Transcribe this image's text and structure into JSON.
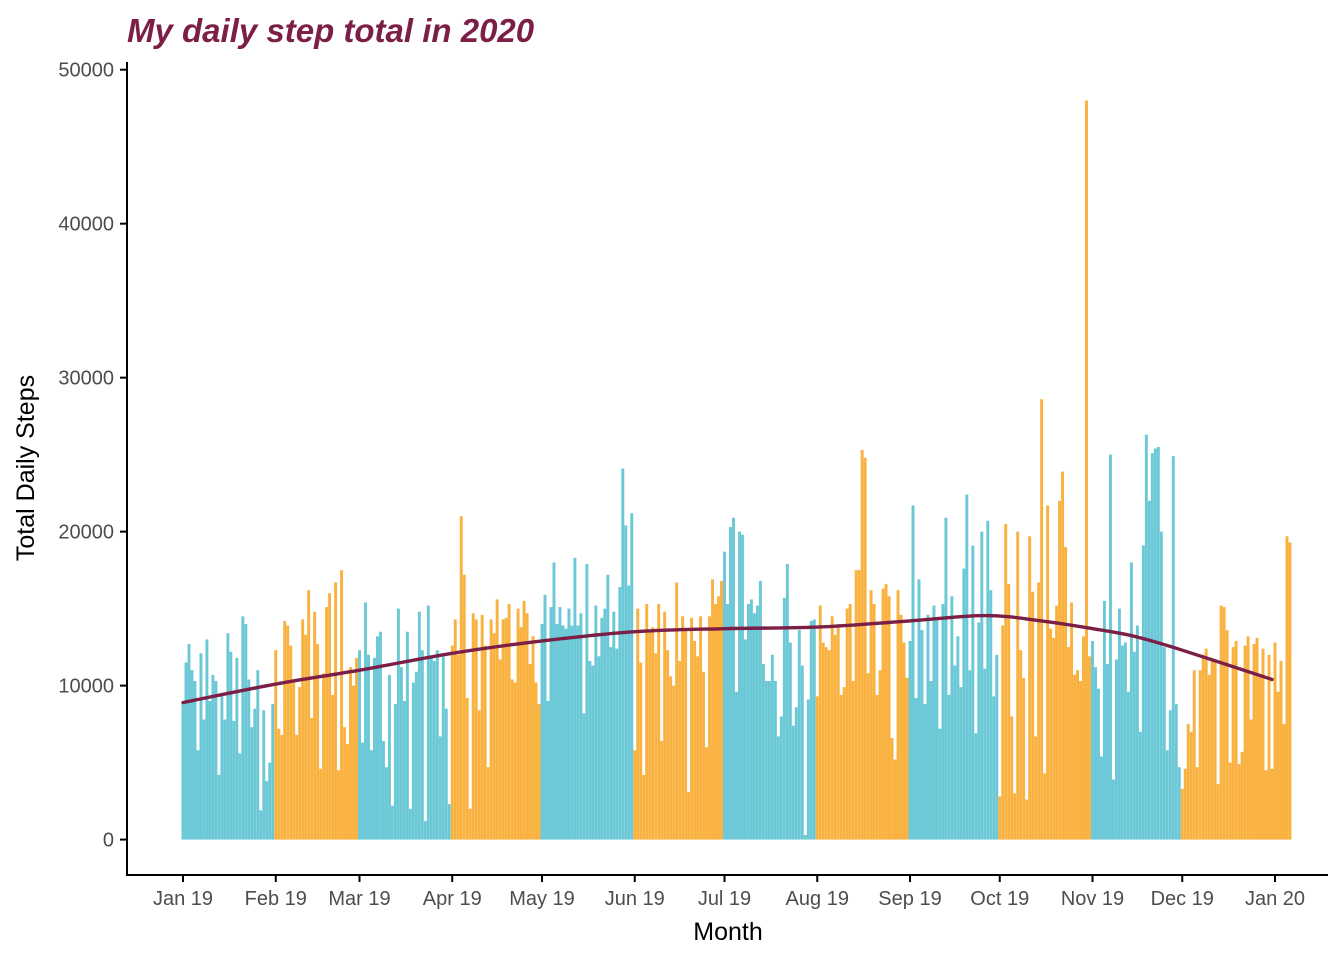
{
  "colors": {
    "title": "#7b1f47",
    "bar_a": "#6bc8d6",
    "bar_b": "#f9b140",
    "trend": "#7b1f47",
    "axis": "#000000",
    "tick_text": "#4d4d4d"
  },
  "chart_data": {
    "type": "bar",
    "title": "My daily step total in 2020",
    "xlabel": "Month",
    "ylabel": "Total Daily Steps",
    "ylim": [
      -2300,
      50500
    ],
    "yticks": [
      0,
      10000,
      20000,
      30000,
      40000,
      50000
    ],
    "xlim": [
      "2019-01-01",
      "2020-01-01"
    ],
    "xticks": [
      "Jan 19",
      "Feb 19",
      "Mar 19",
      "Apr 19",
      "May 19",
      "Jun 19",
      "Jul 19",
      "Aug 19",
      "Sep 19",
      "Oct 19",
      "Nov 19",
      "Dec 19",
      "Jan 20"
    ],
    "grid": false,
    "legend": "none",
    "bar_colors_by_month": [
      "bar_a",
      "bar_b",
      "bar_a",
      "bar_b",
      "bar_a",
      "bar_b",
      "bar_a",
      "bar_b",
      "bar_a",
      "bar_b",
      "bar_a",
      "bar_b"
    ],
    "months": [
      {
        "name": "Jan 19",
        "values": [
          8800,
          11500,
          12700,
          11000,
          10300,
          5800,
          12100,
          7800,
          13000,
          9000,
          10700,
          10300,
          4200,
          9500,
          7800,
          13400,
          12200,
          7700,
          11800,
          5600,
          14500,
          14000,
          10400,
          7300,
          8500,
          11000,
          1900,
          8400,
          3800,
          5000,
          8800
        ]
      },
      {
        "name": "Feb 19",
        "values": [
          12300,
          7200,
          6800,
          14200,
          13900,
          12600,
          10300,
          6800,
          9900,
          14300,
          13300,
          16200,
          7900,
          14800,
          12700,
          4600,
          10800,
          15100,
          16000,
          9400,
          16700,
          4500,
          17500,
          7300,
          6200,
          11200,
          10000,
          11800
        ]
      },
      {
        "name": "Mar 19",
        "values": [
          12300,
          6300,
          15400,
          12000,
          5800,
          11800,
          13200,
          13500,
          6400,
          4700,
          10700,
          2200,
          8800,
          15000,
          11200,
          9000,
          13500,
          2000,
          10200,
          10900,
          14800,
          12300,
          1200,
          15200,
          11800,
          11600,
          12300,
          6700,
          12000,
          8500,
          2300
        ]
      },
      {
        "name": "Apr 19",
        "values": [
          12600,
          14300,
          12000,
          21000,
          17200,
          9200,
          2000,
          14700,
          14300,
          8400,
          14600,
          12600,
          4700,
          14300,
          13400,
          15600,
          11700,
          14300,
          14400,
          15300,
          10400,
          10200,
          15000,
          13800,
          15500,
          14700,
          11400,
          13200,
          10200,
          8800
        ]
      },
      {
        "name": "May 19",
        "values": [
          14000,
          15900,
          9000,
          15100,
          18000,
          14000,
          15100,
          13900,
          13700,
          15000,
          13900,
          18300,
          13900,
          14700,
          8200,
          17900,
          11600,
          11300,
          15200,
          11900,
          14400,
          15000,
          17200,
          12500,
          14800,
          12400,
          16400,
          24100,
          20400,
          16500,
          21200
        ]
      },
      {
        "name": "Jun 19",
        "values": [
          5800,
          15000,
          11500,
          4200,
          15300,
          13500,
          13800,
          12100,
          15300,
          6400,
          14800,
          12300,
          10600,
          10000,
          16700,
          11600,
          14500,
          13700,
          3100,
          14400,
          12900,
          11900,
          14500,
          10900,
          6000,
          14500,
          16900,
          15300,
          15800,
          16800
        ]
      },
      {
        "name": "Jul 19",
        "values": [
          18700,
          15300,
          20300,
          20900,
          9600,
          20000,
          19800,
          13000,
          15300,
          15600,
          14700,
          15200,
          16800,
          11400,
          10300,
          10300,
          12000,
          10300,
          6700,
          8000,
          15700,
          17900,
          12800,
          7400,
          8600,
          13600,
          11300,
          300,
          9100,
          14200,
          14300
        ]
      },
      {
        "name": "Aug 19",
        "values": [
          9300,
          15200,
          12800,
          12500,
          12300,
          14500,
          13300,
          14000,
          9400,
          9900,
          15000,
          15300,
          10300,
          17500,
          17500,
          25300,
          24800,
          10800,
          16200,
          15300,
          9400,
          11000,
          16300,
          16600,
          15800,
          6600,
          5200,
          16200,
          14600,
          12800,
          10500
        ]
      },
      {
        "name": "Sep 19",
        "values": [
          12900,
          21700,
          9200,
          16900,
          13600,
          8800,
          14600,
          10300,
          15200,
          14400,
          7200,
          15300,
          20900,
          9400,
          15800,
          11300,
          13200,
          9900,
          17600,
          22400,
          11000,
          19100,
          6900,
          14100,
          20000,
          11100,
          20700,
          16200,
          9300,
          12000
        ]
      },
      {
        "name": "Oct 19",
        "values": [
          2800,
          13900,
          20500,
          16600,
          8000,
          3000,
          20000,
          12300,
          10500,
          2600,
          19700,
          16100,
          6700,
          16700,
          28600,
          4300,
          21700,
          13700,
          13100,
          15200,
          22000,
          23900,
          19000,
          12500,
          15400,
          10700,
          11000,
          10300,
          13200,
          48000,
          11900
        ]
      },
      {
        "name": "Nov 19",
        "values": [
          12900,
          11200,
          9800,
          5400,
          15500,
          11400,
          25000,
          3900,
          11700,
          15000,
          12600,
          12800,
          9600,
          18000,
          12200,
          13900,
          7000,
          19100,
          26300,
          22000,
          25100,
          25400,
          25500,
          20000,
          12500,
          5800,
          8400,
          24900,
          8800,
          4700
        ]
      },
      {
        "name": "Dec 19",
        "values": [
          3300,
          4600,
          7500,
          7000,
          11000,
          4700,
          11000,
          12000,
          12400,
          10700,
          11800,
          11600,
          3600,
          15200,
          15100,
          13600,
          5000,
          12500,
          12900,
          4900,
          5700,
          12600,
          13200,
          7800,
          12700,
          13100,
          10600,
          12400,
          4500,
          12000,
          4600,
          12800,
          9600,
          11600,
          7500,
          19700,
          19300
        ]
      }
    ],
    "trend": {
      "type": "smooth",
      "x": [
        "2019-01-01",
        "2019-02-01",
        "2019-03-01",
        "2019-04-01",
        "2019-05-01",
        "2019-06-01",
        "2019-07-01",
        "2019-08-01",
        "2019-09-01",
        "2019-09-26",
        "2019-10-15",
        "2019-11-01",
        "2019-11-15",
        "2019-12-01",
        "2019-12-31"
      ],
      "y": [
        8900,
        10100,
        11000,
        12100,
        12900,
        13500,
        13700,
        13800,
        14200,
        14550,
        14200,
        13700,
        13200,
        12300,
        10400
      ]
    }
  }
}
